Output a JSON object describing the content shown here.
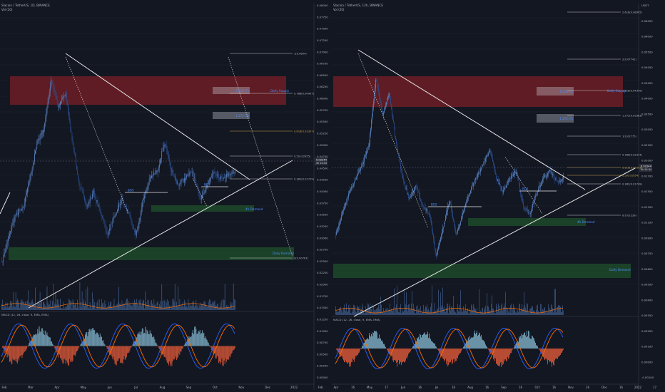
{
  "colors": {
    "bg": "#131722",
    "candle": "#5b86c7",
    "candle_dark": "#2a4d8f",
    "grid": "#1e222d",
    "text": "#b2b5be",
    "supply": "#7a1f26",
    "demand": "#1e4d2b",
    "trend": "#e6e6e6",
    "fib": "#c7c7c7",
    "fib_gold": "#c8a24a",
    "macd": "#2962ff",
    "signal": "#ff6d00",
    "hist_up": "#7fb2c9",
    "hist_dn": "#e05a3a",
    "vol": "#5b86c7",
    "label_blue": "#4c8dff",
    "price_tag": "#2a2e39"
  },
  "left": {
    "title": "Slacoin / TetherUS, 1D, BINANCE",
    "vol_label": "Vol (20)",
    "macd_label": "MACD (12, 26, close, 9, EMA, EMA)",
    "x_ticks": [
      "Feb",
      "Mar",
      "Apr",
      "May",
      "Jun",
      "Jul",
      "Aug",
      "Sep",
      "Oct",
      "Nov",
      "Dec",
      "2022",
      "Feb"
    ],
    "y_ticks": [
      "0.08000",
      "0.07750",
      "0.07500",
      "0.07250",
      "0.07000",
      "0.06750",
      "0.06500",
      "0.06250",
      "0.06000",
      "0.05750",
      "0.05500",
      "0.05250",
      "0.05000",
      "0.04750",
      "0.04500",
      "0.04250",
      "0.04000",
      "0.03750",
      "0.03500",
      "0.03250",
      "0.03000",
      "0.02750",
      "0.02500",
      "0.02250",
      "0.02000",
      "0.01750",
      "0.01500",
      "0.01250",
      "0.01000",
      "0.00750",
      "0.00500",
      "0.00250",
      "0.00000"
    ],
    "fib": [
      {
        "label": "1(0.0694)"
      },
      {
        "label": "0.786(0.04907)"
      },
      {
        "label": "0.618(0.03337)"
      },
      {
        "label": "0.5(0.02955)"
      },
      {
        "label": "0.382(0.01729)"
      },
      {
        "label": "0(0.00767)"
      }
    ],
    "zones": {
      "supply": "Daily Supply",
      "demand4h": "4h Demand",
      "demand_daily": "Daily Demand",
      "bos": "BOS",
      "bos2": "BOS"
    },
    "targets": [
      "1.618 tTv",
      "1.272 tTv"
    ],
    "price_tag": [
      "0.02244",
      "3h 24:44"
    ]
  },
  "right": {
    "title": "Slacoin / TetherUS, 12h, BINANCE",
    "vol_label": "Vol (20)",
    "macd_label": "MACD (12, 26, close, 9, EMA, EMA)",
    "x_ticks": [
      "Apr",
      "16",
      "May",
      "17",
      "Jun",
      "16",
      "Jul",
      "16",
      "Aug",
      "16",
      "Sep",
      "16",
      "Oct",
      "16",
      "Nov",
      "16",
      "Dec",
      "16",
      "2022",
      "17"
    ],
    "y_ticks": [
      "USDT",
      "0.06500",
      "0.06000",
      "0.05500",
      "0.05000",
      "0.04500",
      "0.04000",
      "0.03500",
      "0.03000",
      "0.02500",
      "0.02000",
      "0.01700",
      "0.01500",
      "0.01300",
      "0.01100",
      "0.00900",
      "0.00700",
      "0.00600",
      "0.00500",
      "0.00400",
      "0.00300",
      "0.00200",
      "0.00100",
      "0.00000",
      "-0.00100"
    ],
    "fib": [
      {
        "label": "2.618(0.08995)"
      },
      {
        "label": "2(0.07741)"
      },
      {
        "label": "1.618(0.04349)"
      },
      {
        "label": "1.272(0.03383)"
      },
      {
        "label": "1(0.02775)"
      },
      {
        "label": "0.786(0.02374)"
      },
      {
        "label": "0.618(0.02003)"
      },
      {
        "label": "0.5(0.01954)"
      },
      {
        "label": "0.382(0.01749)"
      },
      {
        "label": "0(0.01239)"
      }
    ],
    "zones": {
      "supply": "Daily Supply",
      "demand4h": "4h Demand",
      "demand_daily": "Daily Demand",
      "bos": "BOS",
      "bos2": "BOS"
    },
    "targets": [
      "1.618 tTv",
      "1.272 tTv"
    ],
    "price_tag": [
      "0.02244",
      "0h 54:34"
    ],
    "macd_ticks": [
      "0.00100",
      "0.00000",
      "-0.00100"
    ]
  }
}
